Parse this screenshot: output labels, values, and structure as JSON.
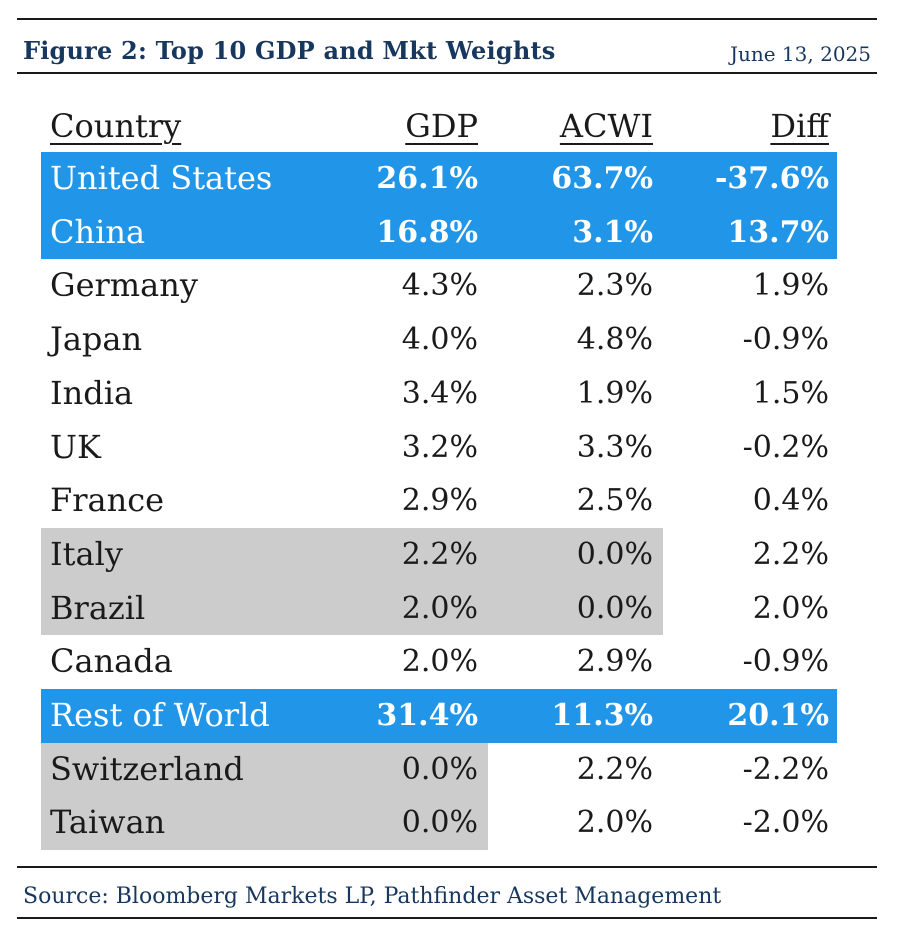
{
  "header": {
    "title": "Figure 2: Top 10 GDP and Mkt Weights",
    "date": "June 13, 2025"
  },
  "chart_data": {
    "type": "table",
    "title": "Figure 2: Top 10 GDP and Mkt Weights",
    "columns": [
      "Country",
      "GDP",
      "ACWI",
      "Diff"
    ],
    "rows": [
      {
        "country": "United States",
        "gdp": "26.1%",
        "acwi": "63.7%",
        "diff": "-37.6%",
        "highlight": "blue"
      },
      {
        "country": "China",
        "gdp": "16.8%",
        "acwi": "3.1%",
        "diff": "13.7%",
        "highlight": "blue"
      },
      {
        "country": "Germany",
        "gdp": "4.3%",
        "acwi": "2.3%",
        "diff": "1.9%",
        "highlight": "none"
      },
      {
        "country": "Japan",
        "gdp": "4.0%",
        "acwi": "4.8%",
        "diff": "-0.9%",
        "highlight": "none"
      },
      {
        "country": "India",
        "gdp": "3.4%",
        "acwi": "1.9%",
        "diff": "1.5%",
        "highlight": "none"
      },
      {
        "country": "UK",
        "gdp": "3.2%",
        "acwi": "3.3%",
        "diff": "-0.2%",
        "highlight": "none"
      },
      {
        "country": "France",
        "gdp": "2.9%",
        "acwi": "2.5%",
        "diff": "0.4%",
        "highlight": "none"
      },
      {
        "country": "Italy",
        "gdp": "2.2%",
        "acwi": "0.0%",
        "diff": "2.2%",
        "highlight": "grey-acwi"
      },
      {
        "country": "Brazil",
        "gdp": "2.0%",
        "acwi": "0.0%",
        "diff": "2.0%",
        "highlight": "grey-acwi"
      },
      {
        "country": "Canada",
        "gdp": "2.0%",
        "acwi": "2.9%",
        "diff": "-0.9%",
        "highlight": "none"
      },
      {
        "country": "Rest of World",
        "gdp": "31.4%",
        "acwi": "11.3%",
        "diff": "20.1%",
        "highlight": "blue"
      },
      {
        "country": "Switzerland",
        "gdp": "0.0%",
        "acwi": "2.2%",
        "diff": "-2.2%",
        "highlight": "grey-gdp"
      },
      {
        "country": "Taiwan",
        "gdp": "0.0%",
        "acwi": "2.0%",
        "diff": "-2.0%",
        "highlight": "grey-gdp"
      }
    ]
  },
  "footer": {
    "source": "Source: Bloomberg Markets LP, Pathfinder Asset Management"
  },
  "colors": {
    "highlight_blue": "#2196e8",
    "highlight_grey": "#cccccc",
    "title": "#17375e"
  }
}
